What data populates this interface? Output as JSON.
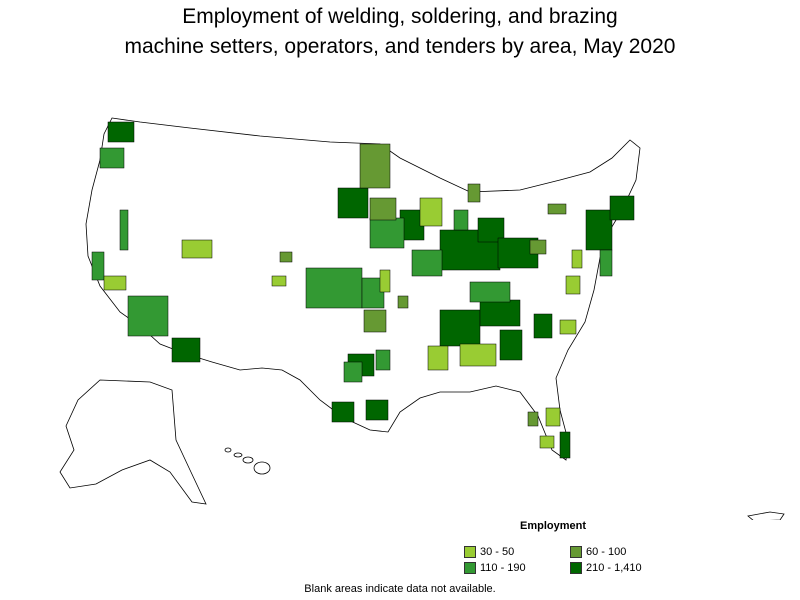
{
  "title_line1": "Employment of welding, soldering, and brazing",
  "title_line2": "machine setters, operators, and tenders by area, May 2020",
  "legend": {
    "title": "Employment",
    "items": [
      {
        "label": "30 - 50",
        "color": "#99cc33"
      },
      {
        "label": "60 - 100",
        "color": "#669933"
      },
      {
        "label": "110 - 190",
        "color": "#339933"
      },
      {
        "label": "210 - 1,410",
        "color": "#006600"
      }
    ]
  },
  "footnote": "Blank areas indicate data not available."
}
